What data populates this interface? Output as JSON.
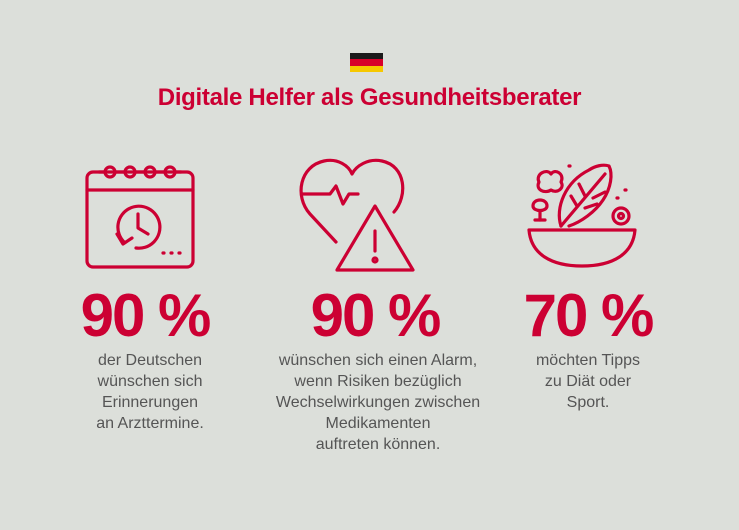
{
  "flag": {
    "country": "germany-flag",
    "colors": [
      "#1a1a1a",
      "#d8002a",
      "#f6c800"
    ]
  },
  "title": "Digitale Helfer als Gesundheitsberater",
  "accent_color": "#cc0033",
  "stats": [
    {
      "icon": "calendar-clock-icon",
      "value": "90 %",
      "lines": [
        "der Deutschen",
        "wünschen sich",
        "Erinnerungen",
        "an Arzttermine."
      ]
    },
    {
      "icon": "heart-warning-icon",
      "value": "90 %",
      "lines": [
        "wünschen sich einen Alarm,",
        "wenn Risiken bezüglich",
        "Wechselwirkungen zwischen",
        "Medikamenten",
        "auftreten können."
      ]
    },
    {
      "icon": "salad-bowl-icon",
      "value": "70 %",
      "lines": [
        "möchten Tipps",
        "zu Diät oder",
        "Sport."
      ]
    }
  ]
}
